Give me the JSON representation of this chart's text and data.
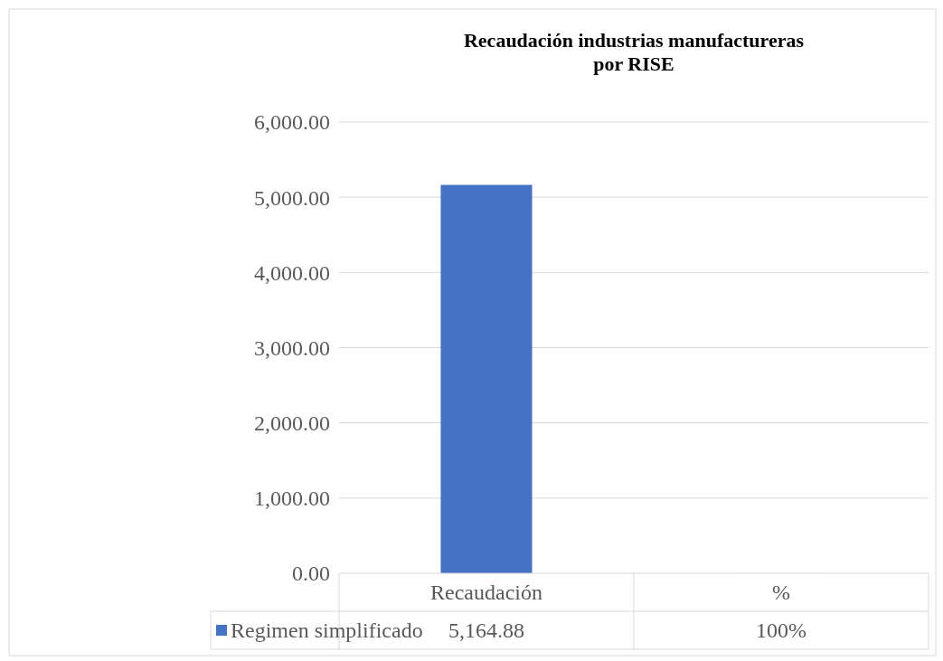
{
  "chart_data": {
    "type": "bar",
    "title": "Recaudación industrias manufactureras\npor RISE",
    "categories": [
      "Recaudación",
      "%"
    ],
    "series": [
      {
        "name": "Regimen simplificado",
        "color": "#4472c4",
        "values": [
          5164.88,
          1
        ],
        "value_labels": [
          "5,164.88",
          "100%"
        ]
      }
    ],
    "ylim": [
      0,
      6000
    ],
    "yticks": [
      {
        "value": 0,
        "label": "0.00"
      },
      {
        "value": 1000,
        "label": "1,000.00"
      },
      {
        "value": 2000,
        "label": "2,000.00"
      },
      {
        "value": 3000,
        "label": "3,000.00"
      },
      {
        "value": 4000,
        "label": "4,000.00"
      },
      {
        "value": 5000,
        "label": "5,000.00"
      },
      {
        "value": 6000,
        "label": "6,000.00"
      }
    ],
    "grid": "y",
    "legend": "bottom"
  }
}
